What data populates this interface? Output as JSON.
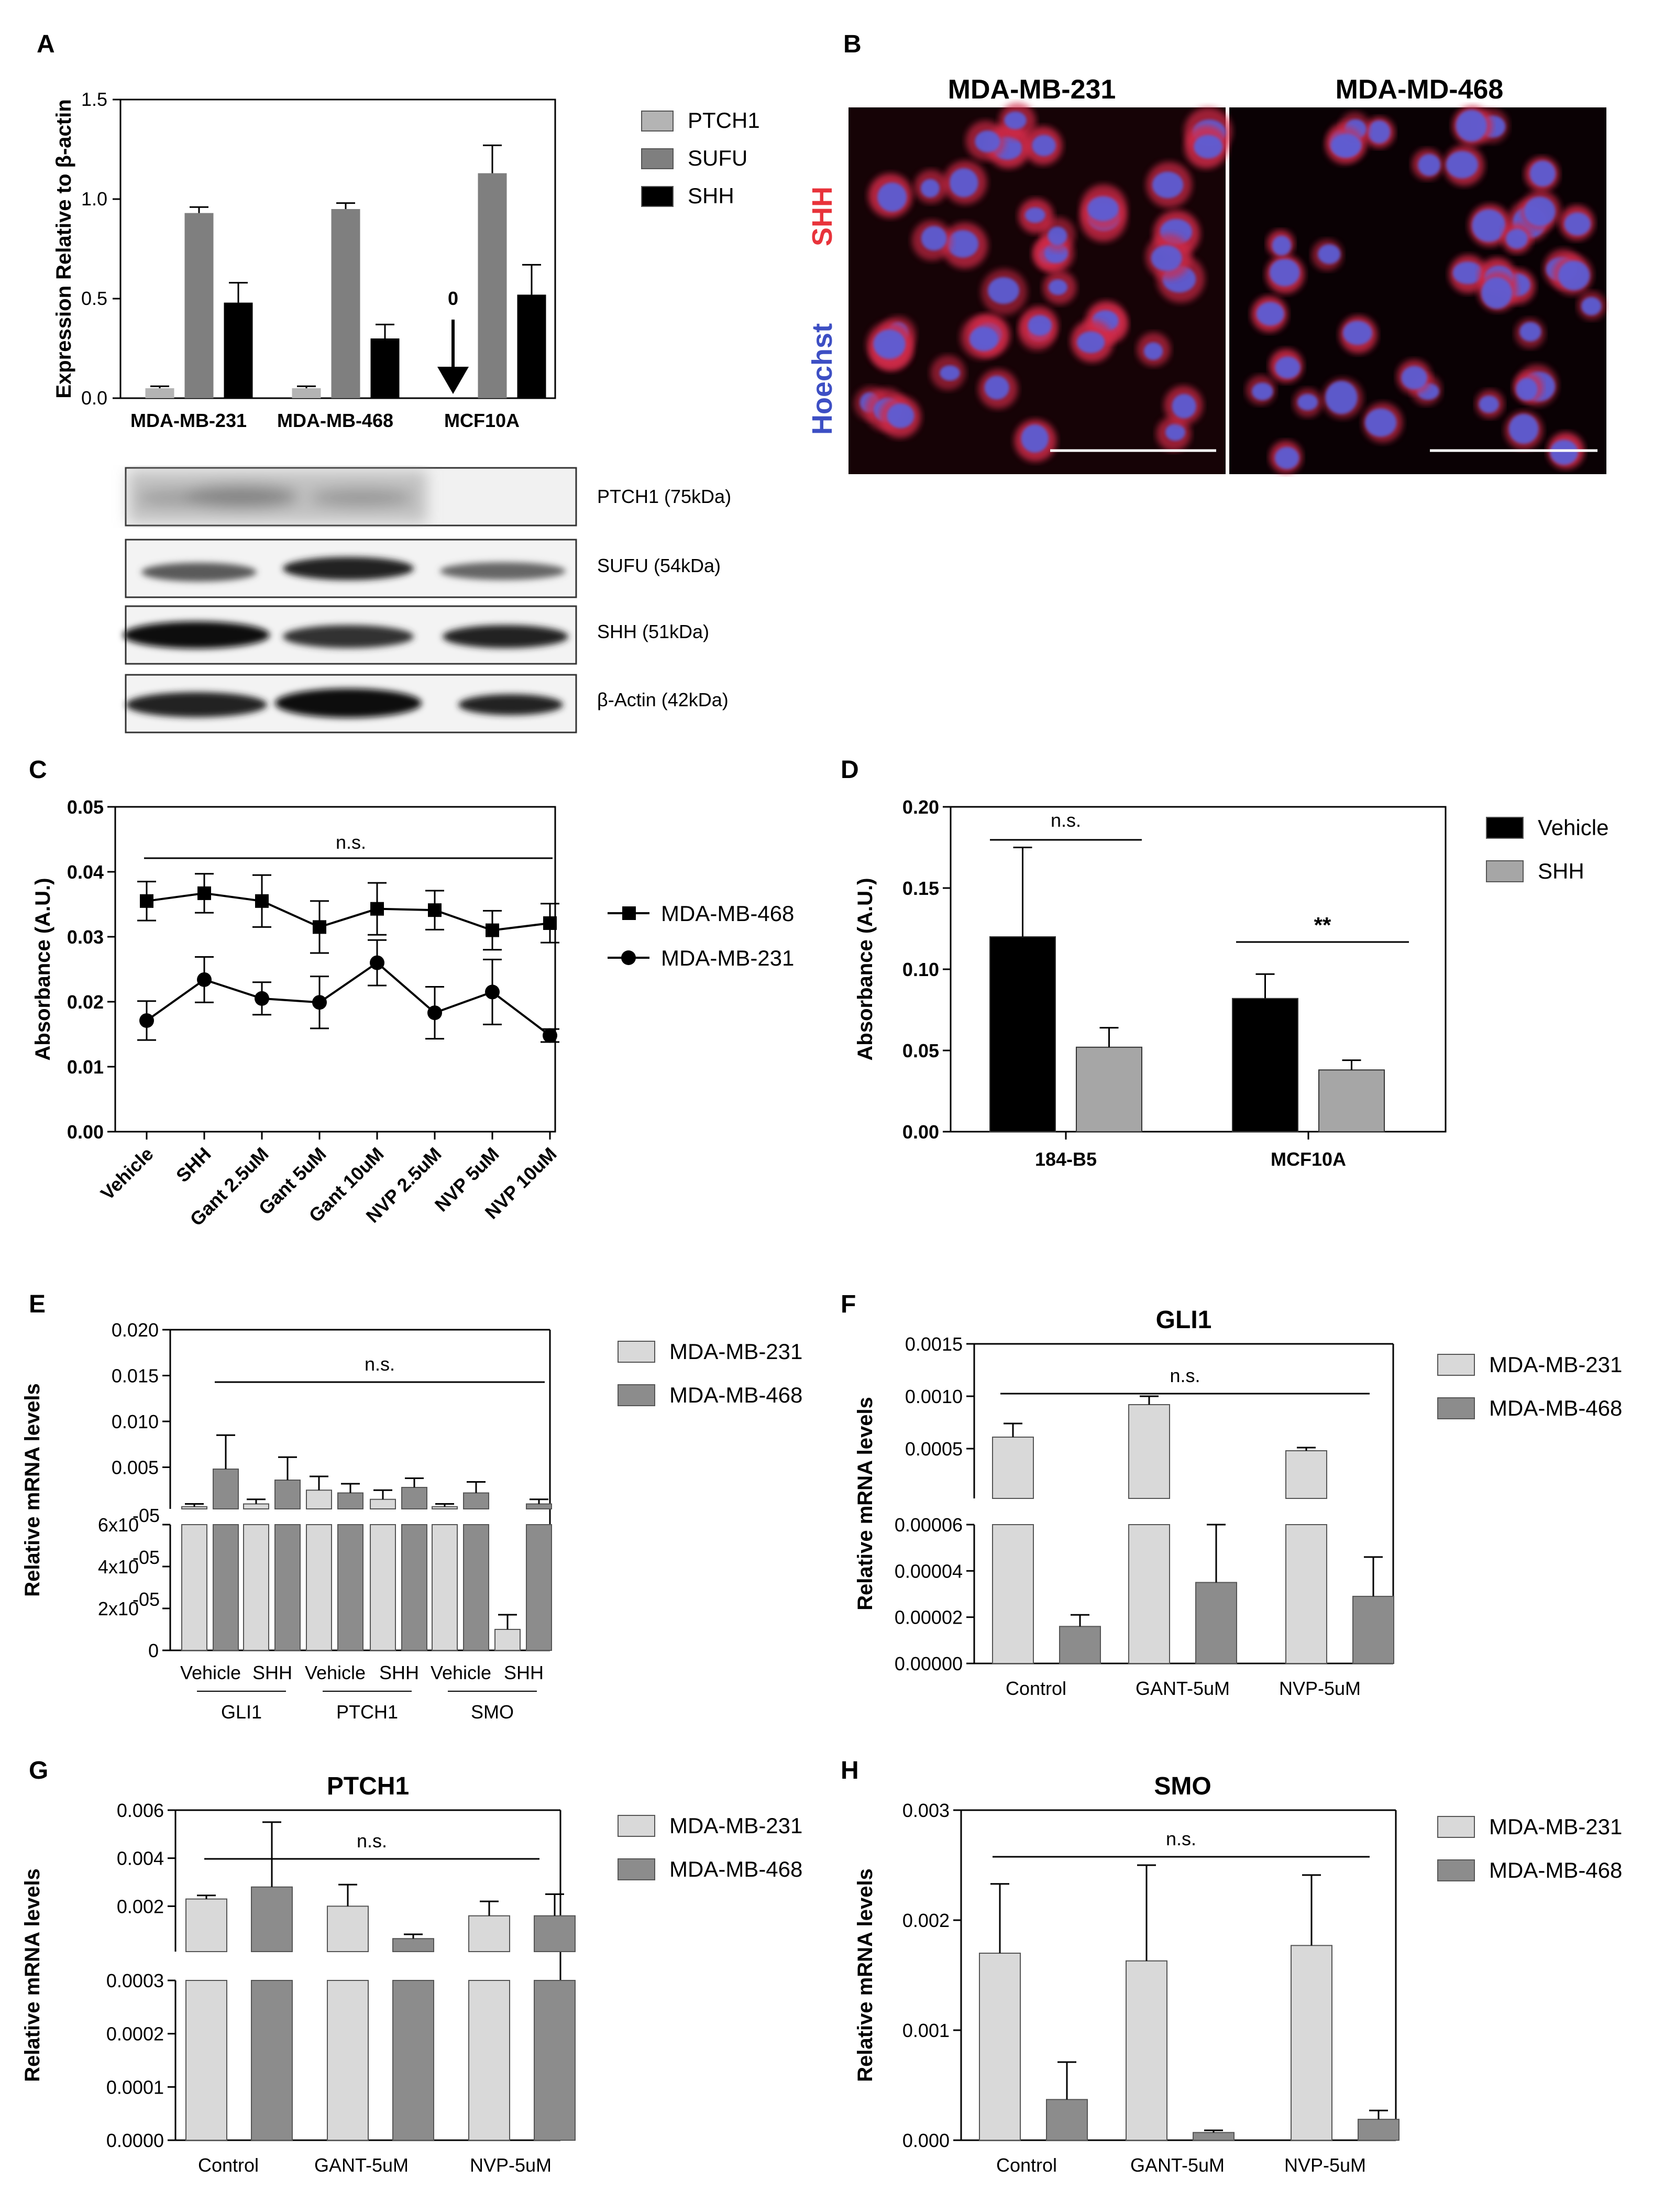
{
  "colors": {
    "light": "#d9d9d9",
    "medium": "#8c8c8c",
    "dark": "#000000",
    "ptch1A": "#b4b4b4",
    "sufuA": "#7f7f7f",
    "red": "#e8333b",
    "blue": "#3d4fc4"
  },
  "chart_data": [
    {
      "id": "A",
      "panel_label": "A",
      "type": "bar",
      "ylabel": "Expression Relative to β-actin",
      "ylim": [
        0,
        1.5
      ],
      "yticks": [
        "0.0",
        "0.5",
        "1.0",
        "1.5"
      ],
      "categories": [
        "MDA-MB-231",
        "MDA-MB-468",
        "MCF10A"
      ],
      "series": [
        {
          "name": "PTCH1",
          "values": [
            0.05,
            0.05,
            0
          ],
          "errors": [
            0.01,
            0.01,
            0
          ]
        },
        {
          "name": "SUFU",
          "values": [
            0.93,
            0.95,
            1.13
          ],
          "errors": [
            0.03,
            0.03,
            0.14
          ]
        },
        {
          "name": "SHH",
          "values": [
            0.48,
            0.3,
            0.52
          ],
          "errors": [
            0.1,
            0.07,
            0.15
          ]
        }
      ],
      "annotation": "0",
      "legend": "right"
    },
    {
      "id": "C",
      "panel_label": "C",
      "type": "line",
      "ylabel": "Absorbance (A.U.)",
      "ylim": [
        0,
        0.05
      ],
      "yticks": [
        "0.00",
        "0.01",
        "0.02",
        "0.03",
        "0.04",
        "0.05"
      ],
      "categories": [
        "Vehicle",
        "SHH",
        "Gant 2.5uM",
        "Gant 5uM",
        "Gant 10uM",
        "NVP 2.5uM",
        "NVP 5uM",
        "NVP 10uM"
      ],
      "series": [
        {
          "name": "MDA-MB-468",
          "marker": "square",
          "values": [
            0.0355,
            0.0367,
            0.0355,
            0.0315,
            0.0343,
            0.0341,
            0.031,
            0.0321
          ],
          "errors": [
            0.003,
            0.003,
            0.004,
            0.004,
            0.004,
            0.003,
            0.003,
            0.003
          ]
        },
        {
          "name": "MDA-MB-231",
          "marker": "circle",
          "values": [
            0.0171,
            0.0234,
            0.0205,
            0.0199,
            0.026,
            0.0183,
            0.0215,
            0.0148
          ],
          "errors": [
            0.003,
            0.0035,
            0.0025,
            0.004,
            0.0035,
            0.004,
            0.005,
            0.001
          ]
        }
      ],
      "annotation": "n.s.",
      "legend": "right"
    },
    {
      "id": "D",
      "panel_label": "D",
      "type": "bar",
      "ylabel": "Absorbance (A.U.)",
      "ylim": [
        0,
        0.2
      ],
      "yticks": [
        "0.00",
        "0.05",
        "0.10",
        "0.15",
        "0.20"
      ],
      "categories": [
        "184-B5",
        "MCF10A"
      ],
      "series": [
        {
          "name": "Vehicle",
          "values": [
            0.12,
            0.082
          ],
          "errors": [
            0.055,
            0.015
          ]
        },
        {
          "name": "SHH",
          "values": [
            0.052,
            0.038
          ],
          "errors": [
            0.012,
            0.006
          ]
        }
      ],
      "annotations": [
        "n.s.",
        "**"
      ],
      "legend": "top-right"
    },
    {
      "id": "E",
      "panel_label": "E",
      "type": "bar",
      "ylabel": "Relative mRNA levels",
      "ylim_upper": [
        0,
        0.02
      ],
      "ylim_lower": [
        0,
        6e-05
      ],
      "yticks_upper": [
        "0.005",
        "0.010",
        "0.015",
        "0.020"
      ],
      "yticks_lower": [
        "0",
        "2x10",
        "4x10",
        "6x10"
      ],
      "ytick_exponent": "-05",
      "categories": [
        "Vehicle",
        "SHH",
        "Vehicle",
        "SHH",
        "Vehicle",
        "SHH"
      ],
      "groups": [
        "GLI1",
        "PTCH1",
        "SMO"
      ],
      "series": [
        {
          "name": "MDA-MB-231",
          "values": [
            0.0007,
            0.001,
            0.0025,
            0.0015,
            0.0007,
            1e-05
          ],
          "errors": [
            0.0003,
            0.0005,
            0.0015,
            0.001,
            0.0003,
            7e-06
          ]
        },
        {
          "name": "MDA-MB-468",
          "values": [
            0.0048,
            0.0036,
            0.0022,
            0.0028,
            0.0022,
            0.001
          ],
          "errors": [
            0.0037,
            0.0025,
            0.001,
            0.001,
            0.0012,
            0.0005
          ]
        }
      ],
      "annotation": "n.s.",
      "legend": "right"
    },
    {
      "id": "F",
      "panel_label": "F",
      "type": "bar",
      "title": "GLI1",
      "ylabel": "Relative mRNA levels",
      "ylim_upper": [
        0,
        0.0015
      ],
      "ylim_lower": [
        0,
        6e-05
      ],
      "yticks_upper": [
        "0.0005",
        "0.0010",
        "0.0015"
      ],
      "yticks_lower": [
        "0.00000",
        "0.00002",
        "0.00004",
        "0.00006"
      ],
      "categories": [
        "Control",
        "GANT-5uM",
        "NVP-5uM"
      ],
      "series": [
        {
          "name": "MDA-MB-231",
          "values": [
            0.00061,
            0.00092,
            0.00048
          ],
          "errors": [
            0.00013,
            8e-05,
            3e-05
          ]
        },
        {
          "name": "MDA-MB-468",
          "values": [
            1.6e-05,
            3.5e-05,
            2.9e-05
          ],
          "errors": [
            5e-06,
            2.5e-05,
            1.7e-05
          ]
        }
      ],
      "annotation": "n.s.",
      "legend": "right"
    },
    {
      "id": "G",
      "panel_label": "G",
      "type": "bar",
      "title": "PTCH1",
      "ylabel": "Relative mRNA levels",
      "ylim_upper": [
        0,
        0.006
      ],
      "ylim_lower": [
        0,
        0.0003
      ],
      "yticks_upper": [
        "0.002",
        "0.004",
        "0.006"
      ],
      "yticks_lower": [
        "0.0000",
        "0.0001",
        "0.0002",
        "0.0003"
      ],
      "categories": [
        "Control",
        "GANT-5uM",
        "NVP-5uM"
      ],
      "series": [
        {
          "name": "MDA-MB-231",
          "values": [
            0.0023,
            0.002,
            0.0016
          ],
          "errors": [
            0.00015,
            0.0009,
            0.0006
          ]
        },
        {
          "name": "MDA-MB-468",
          "values": [
            0.0028,
            0.00065,
            0.0016
          ],
          "errors": [
            0.0027,
            0.00018,
            0.0009
          ]
        }
      ],
      "annotation": "n.s.",
      "legend": "right"
    },
    {
      "id": "H",
      "panel_label": "H",
      "type": "bar",
      "title": "SMO",
      "ylabel": "Relative mRNA levels",
      "ylim": [
        0,
        0.003
      ],
      "yticks": [
        "0.000",
        "0.001",
        "0.002",
        "0.003"
      ],
      "categories": [
        "Control",
        "GANT-5uM",
        "NVP-5uM"
      ],
      "series": [
        {
          "name": "MDA-MB-231",
          "values": [
            0.0017,
            0.00163,
            0.00177
          ],
          "errors": [
            0.00063,
            0.00087,
            0.00064
          ]
        },
        {
          "name": "MDA-MB-468",
          "values": [
            0.00037,
            7e-05,
            0.00019
          ],
          "errors": [
            0.00034,
            2e-05,
            8e-05
          ]
        }
      ],
      "annotation": "n.s.",
      "legend": "right"
    }
  ],
  "western_blot": {
    "bands": [
      "PTCH1 (75kDa)",
      "SUFU (54kDa)",
      "SHH (51kDa)",
      "β-Actin (42kDa)"
    ]
  },
  "microscopy": {
    "panel_label": "B",
    "titles": [
      "MDA-MB-231",
      "MDA-MD-468"
    ],
    "stain_red": "SHH",
    "stain_blue": "Hoechst"
  }
}
